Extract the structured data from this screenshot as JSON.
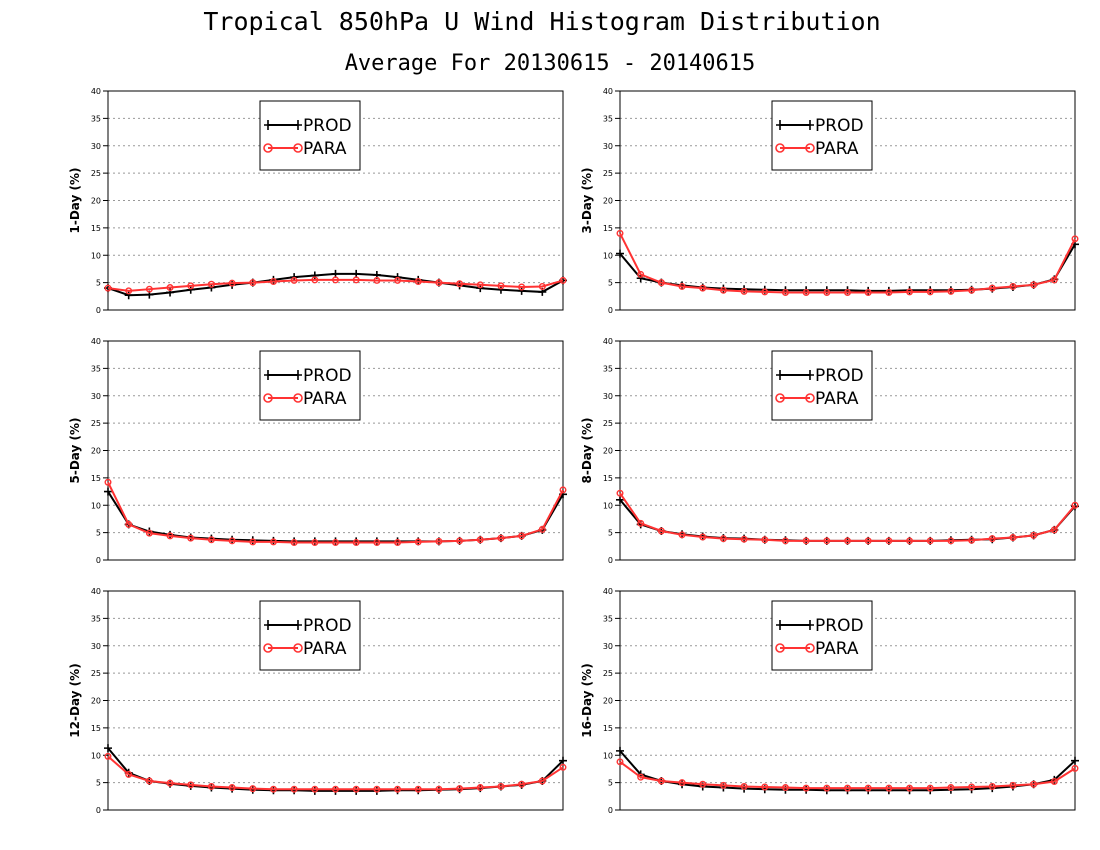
{
  "title": "Tropical 850hPa U Wind Histogram Distribution",
  "subtitle": "Average For 20130615 - 20140615",
  "colors": {
    "prod": "#000000",
    "para": "#ff3333",
    "grid": "#999999"
  },
  "chart_data": [
    {
      "type": "line",
      "ylabel": "1-Day (%)",
      "ylim": [
        0,
        40
      ],
      "yticks": [
        "0",
        "5",
        "10",
        "15",
        "20",
        "25",
        "30",
        "35",
        "40"
      ],
      "grid": true,
      "legend_position": "top-center",
      "x": [
        1,
        2,
        3,
        4,
        5,
        6,
        7,
        8,
        9,
        10,
        11,
        12,
        13,
        14,
        15,
        16,
        17,
        18,
        19,
        20,
        21,
        22,
        23
      ],
      "series": [
        {
          "name": "PROD",
          "values": [
            4.0,
            2.7,
            2.8,
            3.2,
            3.7,
            4.1,
            4.6,
            5.0,
            5.5,
            6.0,
            6.3,
            6.6,
            6.6,
            6.4,
            6.0,
            5.5,
            5.0,
            4.5,
            4.0,
            3.7,
            3.5,
            3.3,
            5.4
          ]
        },
        {
          "name": "PARA",
          "values": [
            4.0,
            3.5,
            3.8,
            4.1,
            4.4,
            4.7,
            4.9,
            5.0,
            5.2,
            5.4,
            5.5,
            5.5,
            5.5,
            5.4,
            5.4,
            5.2,
            5.0,
            4.8,
            4.6,
            4.4,
            4.2,
            4.3,
            5.4
          ]
        }
      ]
    },
    {
      "type": "line",
      "ylabel": "3-Day (%)",
      "ylim": [
        0,
        40
      ],
      "yticks": [
        "0",
        "5",
        "10",
        "15",
        "20",
        "25",
        "30",
        "35",
        "40"
      ],
      "grid": true,
      "legend_position": "top-center",
      "x": [
        1,
        2,
        3,
        4,
        5,
        6,
        7,
        8,
        9,
        10,
        11,
        12,
        13,
        14,
        15,
        16,
        17,
        18,
        19,
        20,
        21,
        22,
        23
      ],
      "series": [
        {
          "name": "PROD",
          "values": [
            10.3,
            5.8,
            5.0,
            4.5,
            4.1,
            3.9,
            3.8,
            3.7,
            3.6,
            3.6,
            3.6,
            3.6,
            3.5,
            3.5,
            3.6,
            3.6,
            3.6,
            3.7,
            3.9,
            4.2,
            4.6,
            5.6,
            12.0
          ]
        },
        {
          "name": "PARA",
          "values": [
            14.0,
            6.5,
            5.0,
            4.3,
            4.0,
            3.6,
            3.4,
            3.3,
            3.2,
            3.2,
            3.2,
            3.2,
            3.2,
            3.2,
            3.3,
            3.3,
            3.4,
            3.6,
            4.0,
            4.3,
            4.6,
            5.5,
            13.0
          ]
        }
      ]
    },
    {
      "type": "line",
      "ylabel": "5-Day (%)",
      "ylim": [
        0,
        40
      ],
      "yticks": [
        "0",
        "5",
        "10",
        "15",
        "20",
        "25",
        "30",
        "35",
        "40"
      ],
      "grid": true,
      "legend_position": "top-center",
      "x": [
        1,
        2,
        3,
        4,
        5,
        6,
        7,
        8,
        9,
        10,
        11,
        12,
        13,
        14,
        15,
        16,
        17,
        18,
        19,
        20,
        21,
        22,
        23
      ],
      "series": [
        {
          "name": "PROD",
          "values": [
            12.5,
            6.5,
            5.2,
            4.6,
            4.1,
            3.9,
            3.7,
            3.6,
            3.5,
            3.4,
            3.4,
            3.4,
            3.4,
            3.4,
            3.4,
            3.4,
            3.4,
            3.5,
            3.7,
            4.0,
            4.4,
            5.5,
            12.0
          ]
        },
        {
          "name": "PARA",
          "values": [
            14.2,
            6.5,
            4.9,
            4.4,
            4.0,
            3.7,
            3.5,
            3.3,
            3.3,
            3.2,
            3.2,
            3.2,
            3.2,
            3.2,
            3.2,
            3.3,
            3.4,
            3.5,
            3.7,
            4.0,
            4.4,
            5.6,
            12.8
          ]
        }
      ]
    },
    {
      "type": "line",
      "ylabel": "8-Day (%)",
      "ylim": [
        0,
        40
      ],
      "yticks": [
        "0",
        "5",
        "10",
        "15",
        "20",
        "25",
        "30",
        "35",
        "40"
      ],
      "grid": true,
      "legend_position": "top-center",
      "x": [
        1,
        2,
        3,
        4,
        5,
        6,
        7,
        8,
        9,
        10,
        11,
        12,
        13,
        14,
        15,
        16,
        17,
        18,
        19,
        20,
        21,
        22,
        23
      ],
      "series": [
        {
          "name": "PROD",
          "values": [
            11.0,
            6.5,
            5.3,
            4.7,
            4.3,
            4.0,
            3.9,
            3.7,
            3.6,
            3.5,
            3.5,
            3.5,
            3.5,
            3.5,
            3.5,
            3.5,
            3.6,
            3.7,
            3.8,
            4.1,
            4.5,
            5.5,
            9.8
          ]
        },
        {
          "name": "PARA",
          "values": [
            12.2,
            6.7,
            5.3,
            4.6,
            4.2,
            3.9,
            3.8,
            3.7,
            3.5,
            3.5,
            3.5,
            3.5,
            3.5,
            3.5,
            3.5,
            3.5,
            3.5,
            3.6,
            3.9,
            4.1,
            4.5,
            5.5,
            10.0
          ]
        }
      ]
    },
    {
      "type": "line",
      "ylabel": "12-Day (%)",
      "ylim": [
        0,
        40
      ],
      "yticks": [
        "0",
        "5",
        "10",
        "15",
        "20",
        "25",
        "30",
        "35",
        "40"
      ],
      "grid": true,
      "legend_position": "top-center",
      "x": [
        1,
        2,
        3,
        4,
        5,
        6,
        7,
        8,
        9,
        10,
        11,
        12,
        13,
        14,
        15,
        16,
        17,
        18,
        19,
        20,
        21,
        22,
        23
      ],
      "series": [
        {
          "name": "PROD",
          "values": [
            11.3,
            6.8,
            5.3,
            4.8,
            4.4,
            4.1,
            3.9,
            3.7,
            3.6,
            3.6,
            3.5,
            3.5,
            3.5,
            3.5,
            3.6,
            3.6,
            3.7,
            3.8,
            4.0,
            4.3,
            4.6,
            5.3,
            9.0
          ]
        },
        {
          "name": "PARA",
          "values": [
            9.8,
            6.5,
            5.3,
            4.9,
            4.6,
            4.3,
            4.1,
            3.9,
            3.8,
            3.8,
            3.8,
            3.8,
            3.8,
            3.8,
            3.8,
            3.8,
            3.8,
            3.9,
            4.1,
            4.3,
            4.7,
            5.3,
            7.8
          ]
        }
      ]
    },
    {
      "type": "line",
      "ylabel": "16-Day (%)",
      "ylim": [
        0,
        40
      ],
      "yticks": [
        "0",
        "5",
        "10",
        "15",
        "20",
        "25",
        "30",
        "35",
        "40"
      ],
      "grid": true,
      "legend_position": "top-center",
      "x": [
        1,
        2,
        3,
        4,
        5,
        6,
        7,
        8,
        9,
        10,
        11,
        12,
        13,
        14,
        15,
        16,
        17,
        18,
        19,
        20,
        21,
        22,
        23
      ],
      "series": [
        {
          "name": "PROD",
          "values": [
            10.8,
            6.5,
            5.3,
            4.7,
            4.3,
            4.1,
            3.9,
            3.8,
            3.7,
            3.7,
            3.6,
            3.6,
            3.6,
            3.6,
            3.6,
            3.6,
            3.7,
            3.8,
            4.0,
            4.3,
            4.7,
            5.5,
            9.0
          ]
        },
        {
          "name": "PARA",
          "values": [
            8.8,
            6.0,
            5.3,
            5.0,
            4.7,
            4.5,
            4.3,
            4.2,
            4.1,
            4.0,
            4.0,
            4.0,
            4.0,
            4.0,
            4.0,
            4.0,
            4.1,
            4.2,
            4.3,
            4.5,
            4.7,
            5.2,
            7.6
          ]
        }
      ]
    }
  ]
}
